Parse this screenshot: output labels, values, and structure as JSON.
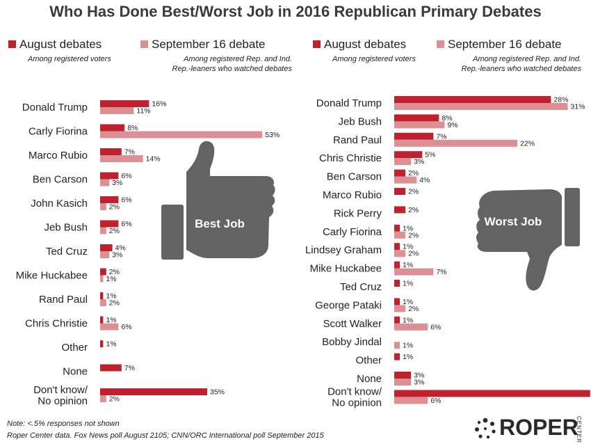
{
  "title": "Who Has Done Best/Worst Job in 2016 Republican Primary Debates",
  "colors": {
    "august": "#c0212e",
    "september": "#dc9094",
    "hand": "#636363"
  },
  "legend": {
    "august_label": "August debates",
    "august_sub": "Among registered voters",
    "september_label": "September 16 debate",
    "september_sub_1": "Among registered Rep. and Ind.",
    "september_sub_2": "Rep.-leaners who watched debates"
  },
  "notes": {
    "line1": "Note: <.5% responses not shown",
    "line2": "Roper Center data. Fox News poll August 2105; CNN/ORC International poll September 2015"
  },
  "logo": {
    "word": "ROPER",
    "sub": "CENTER"
  },
  "chart_data": [
    {
      "type": "bar",
      "panel_label": "Best Job",
      "icon": "thumbs-up-icon",
      "categories": [
        "Donald Trump",
        "Carly Fiorina",
        "Marco Rubio",
        "Ben Carson",
        "John Kasich",
        "Jeb Bush",
        "Ted Cruz",
        "Mike Huckabee",
        "Rand Paul",
        "Chris Christie",
        "Other",
        "None",
        "Don't know/\nNo opinion"
      ],
      "series": [
        {
          "name": "August debates",
          "values": [
            16,
            8,
            7,
            6,
            6,
            6,
            4,
            2,
            1,
            1,
            1,
            7,
            35
          ]
        },
        {
          "name": "September 16 debate",
          "values": [
            11,
            53,
            14,
            3,
            2,
            2,
            3,
            1,
            2,
            6,
            null,
            null,
            2
          ]
        }
      ],
      "unit": "%"
    },
    {
      "type": "bar",
      "panel_label": "Worst Job",
      "icon": "thumbs-down-icon",
      "categories": [
        "Donald Trump",
        "Jeb Bush",
        "Rand Paul",
        "Chris Christie",
        "Ben Carson",
        "Marco Rubio",
        "Rick Perry",
        "Carly Fiorina",
        "Lindsey Graham",
        "Mike Huckabee",
        "Ted Cruz",
        "George Pataki",
        "Scott Walker",
        "Bobby Jindal",
        "Other",
        "None",
        "Don't know/\nNo opinion"
      ],
      "series": [
        {
          "name": "August debates",
          "values": [
            28,
            8,
            7,
            5,
            2,
            2,
            2,
            1,
            1,
            1,
            1,
            1,
            1,
            null,
            1,
            3,
            35
          ]
        },
        {
          "name": "September 16 debate",
          "values": [
            31,
            9,
            22,
            3,
            4,
            null,
            null,
            2,
            2,
            7,
            null,
            2,
            6,
            1,
            null,
            3,
            6
          ]
        }
      ],
      "unit": "%"
    }
  ]
}
